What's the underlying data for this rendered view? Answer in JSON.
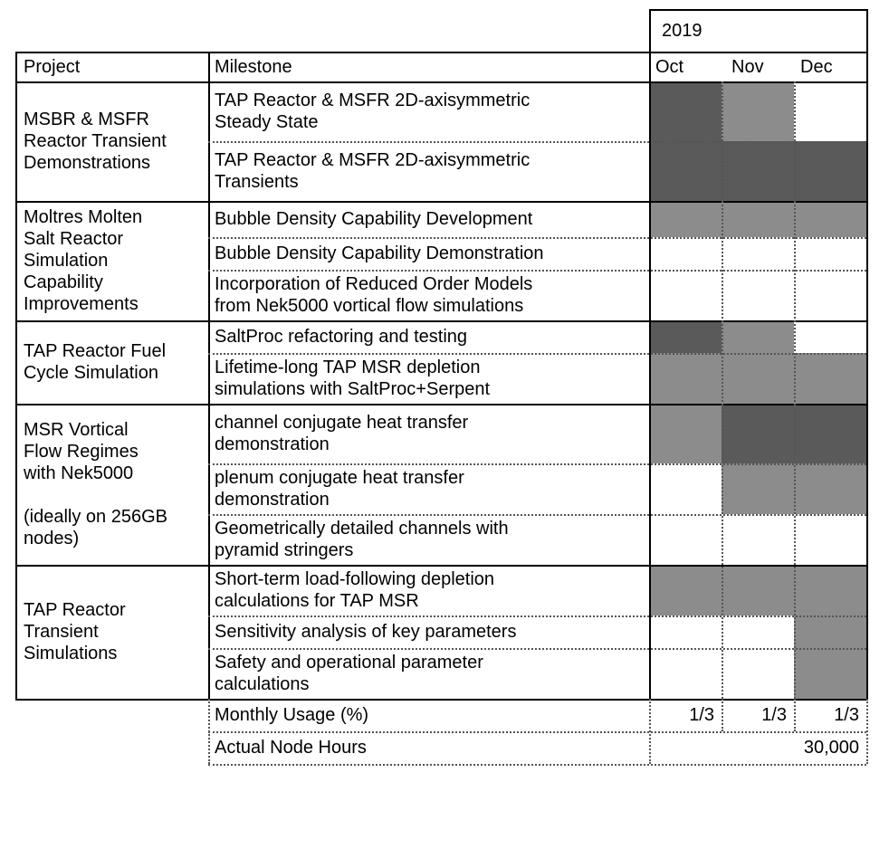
{
  "year": "2019",
  "headers": {
    "project": "Project",
    "milestone": "Milestone",
    "months": [
      "Oct",
      "Nov",
      "Dec"
    ]
  },
  "colors": {
    "dark": "#5a5a5a",
    "medium": "#8c8c8c",
    "empty": "#ffffff"
  },
  "projects": [
    {
      "lines": [
        "MSBR & MSFR",
        "Reactor Transient",
        "Demonstrations"
      ]
    },
    {
      "lines": [
        "Moltres Molten",
        "Salt Reactor",
        "Simulation",
        "Capability",
        "Improvements"
      ]
    },
    {
      "lines": [
        "TAP Reactor Fuel",
        "Cycle Simulation"
      ]
    },
    {
      "lines": [
        "MSR Vortical",
        "Flow Regimes",
        "with Nek5000",
        "",
        "(ideally on 256GB",
        "nodes)"
      ]
    },
    {
      "lines": [
        "TAP Reactor",
        "Transient",
        "Simulations"
      ]
    }
  ],
  "milestones": [
    {
      "lines": [
        "TAP Reactor & MSFR 2D-axisymmetric",
        "Steady State"
      ],
      "months": [
        "dark",
        "medium",
        "empty"
      ]
    },
    {
      "lines": [
        "TAP Reactor & MSFR 2D-axisymmetric",
        "Transients"
      ],
      "months": [
        "dark",
        "dark",
        "dark"
      ]
    },
    {
      "lines": [
        "Bubble Density Capability Development"
      ],
      "months": [
        "medium",
        "medium",
        "medium"
      ]
    },
    {
      "lines": [
        "Bubble Density Capability Demonstration"
      ],
      "months": [
        "empty",
        "empty",
        "empty"
      ]
    },
    {
      "lines": [
        "Incorporation of Reduced Order Models",
        "from Nek5000 vortical flow simulations"
      ],
      "months": [
        "empty",
        "empty",
        "empty"
      ]
    },
    {
      "lines": [
        "SaltProc refactoring and testing"
      ],
      "months": [
        "dark",
        "medium",
        "empty"
      ]
    },
    {
      "lines": [
        "Lifetime-long TAP MSR depletion",
        "simulations with SaltProc+Serpent"
      ],
      "months": [
        "medium",
        "medium",
        "medium"
      ]
    },
    {
      "lines": [
        "channel conjugate heat transfer",
        "demonstration"
      ],
      "months": [
        "medium",
        "dark",
        "dark"
      ]
    },
    {
      "lines": [
        "plenum conjugate heat transfer",
        "demonstration"
      ],
      "months": [
        "empty",
        "medium",
        "medium"
      ]
    },
    {
      "lines": [
        "Geometrically detailed channels with",
        "pyramid stringers"
      ],
      "months": [
        "empty",
        "empty",
        "empty"
      ]
    },
    {
      "lines": [
        "Short-term load-following depletion",
        "calculations for TAP MSR"
      ],
      "months": [
        "medium",
        "medium",
        "medium"
      ]
    },
    {
      "lines": [
        "Sensitivity analysis of key parameters"
      ],
      "months": [
        "empty",
        "empty",
        "medium"
      ]
    },
    {
      "lines": [
        "Safety and operational parameter",
        "calculations"
      ],
      "months": [
        "empty",
        "empty",
        "medium"
      ]
    }
  ],
  "footer": {
    "usage_label": "Monthly Usage (%)",
    "usage_values": [
      "1/3",
      "1/3",
      "1/3"
    ],
    "hours_label": "Actual Node Hours",
    "hours_value": "30,000"
  }
}
